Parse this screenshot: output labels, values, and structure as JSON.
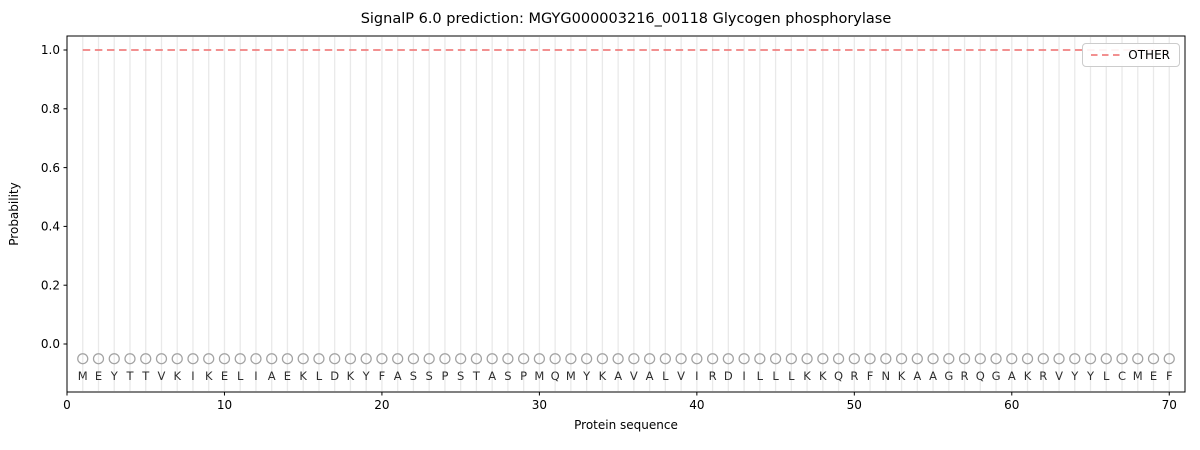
{
  "figure": {
    "title": "SignalP 6.0 prediction: MGYG000003216_00118 Glycogen phosphorylase"
  },
  "chart_data": {
    "type": "line",
    "title": "SignalP 6.0 prediction: MGYG000003216_00118 Glycogen phosphorylase",
    "xlabel": "Protein sequence",
    "ylabel": "Probability",
    "xlim": [
      0,
      71
    ],
    "ylim": [
      -0.163,
      1.048
    ],
    "x_ticks": [
      0,
      10,
      20,
      30,
      40,
      50,
      60,
      70
    ],
    "y_ticks": [
      0.0,
      0.2,
      0.4,
      0.6,
      0.8,
      1.0
    ],
    "grid": "light vertical gridline at every residue position 1-70",
    "legend": {
      "position": "upper right",
      "entries": [
        {
          "label": "OTHER",
          "color": "#f08080",
          "linestyle": "dashed"
        }
      ]
    },
    "series": [
      {
        "name": "OTHER",
        "color": "#f08080",
        "linestyle": "dashed",
        "x": [
          1,
          70
        ],
        "y": [
          1.0,
          1.0
        ],
        "note": "constant probability 1.0 across all 70 residues"
      }
    ],
    "sequence": "MEYTTVKIKELIAEKLDKYFASSPSTASPMQMYKAVALVIRDILLLKKQRFNKAAGRQGAKRVYYLCMEF",
    "sequence_length": 70,
    "marker_y": -0.05,
    "letter_y": -0.095
  },
  "colors": {
    "line": "#f08080",
    "grid": "#e9e9e9",
    "marker_outline": "#a3a3a3",
    "letter": "#2e2e2e",
    "spine": "#000000",
    "tick": "#000000",
    "legend_border": "#cccccc"
  }
}
